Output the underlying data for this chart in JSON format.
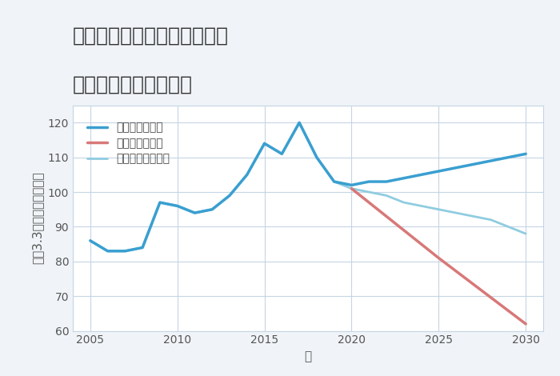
{
  "title_line1": "愛知県名古屋市天白区中平の",
  "title_line2": "中古戸建ての価格推移",
  "xlabel": "年",
  "ylabel": "坪（3.3㎡）単価（万円）",
  "ylim": [
    60,
    125
  ],
  "xlim": [
    2004,
    2031
  ],
  "yticks": [
    60,
    70,
    80,
    90,
    100,
    110,
    120
  ],
  "xticks": [
    2005,
    2010,
    2015,
    2020,
    2025,
    2030
  ],
  "background_color": "#f0f4f8",
  "plot_bg_color": "#ffffff",
  "grid_color": "#c5d5e5",
  "good_scenario": {
    "label": "グッドシナリオ",
    "color": "#3a9fd0",
    "linewidth": 2.5,
    "x": [
      2005,
      2006,
      2007,
      2008,
      2009,
      2010,
      2011,
      2012,
      2013,
      2014,
      2015,
      2016,
      2017,
      2018,
      2019,
      2020,
      2021,
      2022,
      2023,
      2024,
      2025,
      2026,
      2027,
      2028,
      2029,
      2030
    ],
    "y": [
      86,
      83,
      83,
      84,
      97,
      96,
      94,
      95,
      99,
      105,
      114,
      111,
      120,
      110,
      103,
      102,
      103,
      103,
      104,
      105,
      106,
      107,
      108,
      109,
      110,
      111
    ]
  },
  "bad_scenario": {
    "label": "バッドシナリオ",
    "color": "#d87878",
    "linewidth": 2.5,
    "x": [
      2020,
      2025,
      2030
    ],
    "y": [
      101,
      81,
      62
    ]
  },
  "normal_scenario": {
    "label": "ノーマルシナリオ",
    "color": "#90cce0",
    "linewidth": 2.0,
    "x": [
      2005,
      2006,
      2007,
      2008,
      2009,
      2010,
      2011,
      2012,
      2013,
      2014,
      2015,
      2016,
      2017,
      2018,
      2019,
      2020,
      2021,
      2022,
      2023,
      2024,
      2025,
      2026,
      2027,
      2028,
      2029,
      2030
    ],
    "y": [
      86,
      83,
      83,
      84,
      97,
      96,
      94,
      95,
      99,
      105,
      114,
      111,
      120,
      110,
      103,
      101,
      100,
      99,
      97,
      96,
      95,
      94,
      93,
      92,
      90,
      88
    ]
  },
  "title_fontsize": 18,
  "label_fontsize": 11,
  "tick_fontsize": 10,
  "legend_fontsize": 10
}
